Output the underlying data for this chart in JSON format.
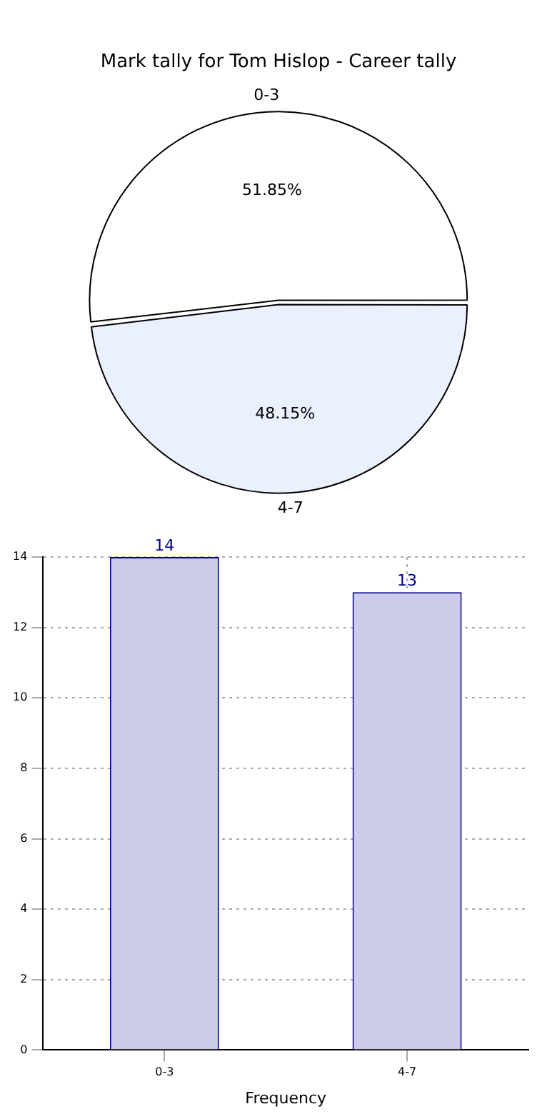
{
  "chart_data": [
    {
      "type": "pie",
      "title": "Mark tally for Tom Hislop - Career tally",
      "categories": [
        "0-3",
        "4-7"
      ],
      "values": [
        51.85,
        48.15
      ],
      "colors": [
        "#ffffff",
        "#eaf0fd"
      ],
      "value_labels": [
        "51.85%",
        "48.15%"
      ],
      "legend": false
    },
    {
      "type": "bar",
      "xlabel": "Frequency",
      "categories": [
        "0-3",
        "4-7"
      ],
      "values": [
        14,
        13
      ],
      "color": "#ccccea",
      "ylim": [
        0,
        14
      ],
      "yticks": [
        0,
        2,
        4,
        6,
        8,
        10,
        12,
        14
      ],
      "grid": true,
      "data_labels": true,
      "legend": false
    }
  ]
}
